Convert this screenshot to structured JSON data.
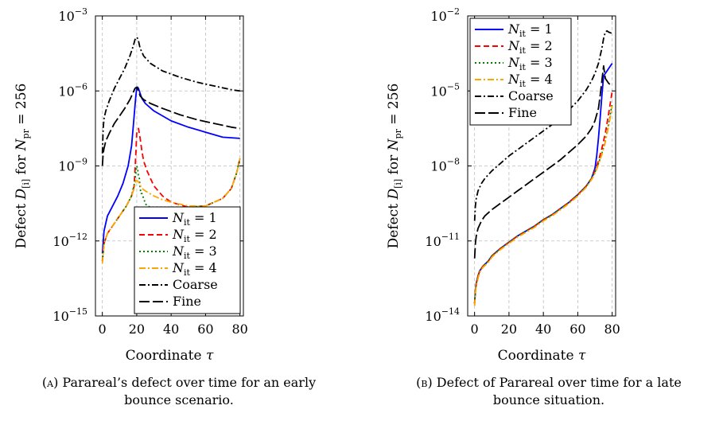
{
  "captions": {
    "a": {
      "label": "(a)",
      "text": "Parareal’s defect over time for an early bounce scenario."
    },
    "b": {
      "label": "(b)",
      "text": "Defect of Parareal over time for a late bounce situation."
    }
  },
  "chart_data": [
    {
      "type": "line",
      "xlabel": "Coordinate τ",
      "ylabel": "Defect D[i] for Npr = 256",
      "y_scale": "log",
      "xlim": [
        -4,
        82
      ],
      "ylim": [
        -15,
        -3
      ],
      "x_ticks": [
        0,
        20,
        40,
        60,
        80
      ],
      "y_ticks": [
        -15,
        -12,
        -9,
        -6,
        -3
      ],
      "grid": true,
      "legend_position": "lower-right",
      "series": [
        {
          "name": "N_it = 1",
          "color": "#0000ff",
          "dash": "solid",
          "x": [
            0,
            1,
            3,
            6,
            9,
            12,
            15,
            17,
            18,
            19,
            19.5,
            20,
            20.5,
            21,
            22,
            23,
            25,
            30,
            40,
            50,
            60,
            70,
            80
          ],
          "log10_y": [
            -12.5,
            -11.6,
            -11,
            -10.6,
            -10.2,
            -9.7,
            -9,
            -8.2,
            -7.4,
            -6.6,
            -6.2,
            -5.9,
            -5.85,
            -5.9,
            -6.1,
            -6.3,
            -6.5,
            -6.8,
            -7.2,
            -7.45,
            -7.65,
            -7.85,
            -7.9
          ]
        },
        {
          "name": "N_it = 2",
          "color": "#ff0000",
          "dash": "dashed",
          "x": [
            0,
            1,
            3,
            6,
            10,
            14,
            17,
            18.5,
            19.5,
            20,
            20.5,
            21,
            22,
            23,
            24,
            26,
            28,
            30,
            35,
            40,
            50,
            60,
            70,
            75,
            78,
            80
          ],
          "log10_y": [
            -12.8,
            -12.1,
            -11.7,
            -11.4,
            -11,
            -10.6,
            -10.2,
            -9.8,
            -8.5,
            -7.7,
            -7.6,
            -7.5,
            -7.9,
            -8.4,
            -8.8,
            -9.2,
            -9.5,
            -9.8,
            -10.2,
            -10.45,
            -10.65,
            -10.6,
            -10.3,
            -9.9,
            -9.3,
            -8.7
          ]
        },
        {
          "name": "N_it = 3",
          "color": "#008000",
          "dash": "dotted",
          "x": [
            0,
            1,
            3,
            6,
            10,
            14,
            17,
            18,
            19,
            19.5,
            20,
            20.5,
            21,
            21.5,
            22,
            22.5,
            23,
            23.5,
            24,
            25,
            26,
            28,
            30,
            40,
            50,
            60,
            70,
            75,
            78,
            80
          ],
          "log10_y": [
            -12.8,
            -12.1,
            -11.7,
            -11.4,
            -11,
            -10.6,
            -10.2,
            -9.9,
            -9.6,
            -9.2,
            -9,
            -9.1,
            -9.4,
            -9.5,
            -9.9,
            -10.1,
            -10.1,
            -10.2,
            -10.3,
            -10.5,
            -10.6,
            -10.65,
            -10.65,
            -10.65,
            -10.65,
            -10.6,
            -10.3,
            -9.9,
            -9.3,
            -8.7
          ]
        },
        {
          "name": "N_it = 4",
          "color": "#ffa500",
          "dash": "dashdot",
          "x": [
            0,
            1,
            3,
            6,
            10,
            14,
            17,
            18.5,
            19.5,
            20.5,
            21.5,
            23,
            25,
            30,
            35,
            40,
            50,
            60,
            70,
            75,
            78,
            80
          ],
          "log10_y": [
            -12.9,
            -12.1,
            -11.7,
            -11.4,
            -11,
            -10.6,
            -10.2,
            -9.9,
            -9.6,
            -9.6,
            -9.7,
            -9.9,
            -10,
            -10.2,
            -10.35,
            -10.45,
            -10.6,
            -10.6,
            -10.3,
            -9.9,
            -9.3,
            -8.7
          ]
        },
        {
          "name": "Coarse",
          "color": "#000000",
          "dash": "dashdot",
          "x": [
            0,
            0.5,
            1,
            2,
            4,
            7,
            10,
            13,
            16,
            18,
            19,
            20,
            20.5,
            21,
            22,
            24,
            28,
            35,
            45,
            55,
            65,
            75,
            80
          ],
          "log10_y": [
            -8.5,
            -7.5,
            -7.1,
            -6.8,
            -6.4,
            -5.9,
            -5.5,
            -5.1,
            -4.6,
            -4.2,
            -3.95,
            -3.85,
            -3.9,
            -4,
            -4.3,
            -4.6,
            -4.9,
            -5.2,
            -5.45,
            -5.65,
            -5.8,
            -5.95,
            -6
          ]
        },
        {
          "name": "Fine",
          "color": "#000000",
          "dash": "longdash",
          "x": [
            0,
            0.5,
            1,
            2,
            4,
            7,
            10,
            13,
            16,
            18,
            19,
            20,
            20.5,
            21,
            22,
            24,
            28,
            35,
            45,
            55,
            65,
            75,
            80
          ],
          "log10_y": [
            -9,
            -8.5,
            -8.3,
            -8,
            -7.7,
            -7.3,
            -7,
            -6.7,
            -6.35,
            -6.05,
            -5.9,
            -5.85,
            -5.9,
            -6,
            -6.2,
            -6.35,
            -6.5,
            -6.7,
            -6.95,
            -7.15,
            -7.3,
            -7.45,
            -7.5
          ]
        }
      ]
    },
    {
      "type": "line",
      "xlabel": "Coordinate τ",
      "ylabel": "Defect D[i] for Npr = 256",
      "y_scale": "log",
      "xlim": [
        -4,
        82
      ],
      "ylim": [
        -14,
        -2
      ],
      "x_ticks": [
        0,
        20,
        40,
        60,
        80
      ],
      "y_ticks": [
        -14,
        -11,
        -8,
        -5,
        -2
      ],
      "grid": true,
      "legend_position": "top-left",
      "series": [
        {
          "name": "N_it = 1",
          "color": "#0000ff",
          "dash": "solid",
          "x": [
            0,
            0.5,
            1,
            2,
            3,
            5,
            8,
            10,
            15,
            20,
            25,
            30,
            35,
            40,
            45,
            50,
            55,
            60,
            65,
            68,
            70,
            71,
            72,
            73,
            74,
            75,
            77,
            79,
            80
          ],
          "log10_y": [
            -13.5,
            -13,
            -12.7,
            -12.4,
            -12.2,
            -12,
            -11.8,
            -11.6,
            -11.3,
            -11.05,
            -10.8,
            -10.6,
            -10.4,
            -10.15,
            -9.95,
            -9.7,
            -9.45,
            -9.15,
            -8.8,
            -8.5,
            -8.1,
            -7.6,
            -6.9,
            -6.1,
            -5.2,
            -4.4,
            -4.2,
            -4,
            -3.9
          ]
        },
        {
          "name": "N_it = 2",
          "color": "#ff0000",
          "dash": "dashed",
          "x": [
            0,
            0.5,
            1,
            2,
            3,
            5,
            8,
            10,
            15,
            20,
            25,
            30,
            35,
            40,
            45,
            50,
            55,
            60,
            65,
            68,
            70,
            72,
            74,
            76,
            78,
            80
          ],
          "log10_y": [
            -13.5,
            -13,
            -12.7,
            -12.4,
            -12.2,
            -12,
            -11.8,
            -11.6,
            -11.3,
            -11.05,
            -10.8,
            -10.6,
            -10.4,
            -10.15,
            -9.95,
            -9.7,
            -9.45,
            -9.15,
            -8.8,
            -8.5,
            -8.2,
            -7.8,
            -7.3,
            -6.7,
            -5.9,
            -5
          ]
        },
        {
          "name": "N_it = 3",
          "color": "#008000",
          "dash": "dotted",
          "x": [
            0,
            0.5,
            1,
            2,
            3,
            5,
            8,
            10,
            15,
            20,
            25,
            30,
            35,
            40,
            45,
            50,
            55,
            60,
            65,
            68,
            70,
            72,
            74,
            76,
            78,
            80
          ],
          "log10_y": [
            -13.5,
            -13,
            -12.7,
            -12.4,
            -12.2,
            -12,
            -11.8,
            -11.6,
            -11.3,
            -11.05,
            -10.8,
            -10.6,
            -10.4,
            -10.15,
            -9.95,
            -9.7,
            -9.45,
            -9.15,
            -8.8,
            -8.5,
            -8.25,
            -7.9,
            -7.5,
            -7,
            -6.3,
            -5.5
          ]
        },
        {
          "name": "N_it = 4",
          "color": "#ffa500",
          "dash": "dashdot",
          "x": [
            0,
            0.5,
            1,
            2,
            3,
            5,
            8,
            10,
            15,
            20,
            25,
            30,
            35,
            40,
            45,
            50,
            55,
            60,
            65,
            68,
            70,
            72,
            74,
            76,
            78,
            80
          ],
          "log10_y": [
            -13.6,
            -13.1,
            -12.8,
            -12.5,
            -12.25,
            -12.05,
            -11.85,
            -11.65,
            -11.35,
            -11.1,
            -10.85,
            -10.65,
            -10.45,
            -10.2,
            -10,
            -9.75,
            -9.5,
            -9.2,
            -8.85,
            -8.55,
            -8.3,
            -7.95,
            -7.55,
            -7.05,
            -6.4,
            -5.6
          ]
        },
        {
          "name": "Coarse",
          "color": "#000000",
          "dash": "dashdot",
          "x": [
            0,
            0.5,
            1,
            2,
            4,
            6,
            10,
            15,
            20,
            25,
            30,
            35,
            40,
            45,
            50,
            55,
            60,
            65,
            68,
            70,
            72,
            74,
            75,
            76,
            77,
            78,
            80
          ],
          "log10_y": [
            -10.2,
            -9.6,
            -9.3,
            -9,
            -8.7,
            -8.5,
            -8.2,
            -7.9,
            -7.6,
            -7.35,
            -7.1,
            -6.85,
            -6.6,
            -6.35,
            -6.05,
            -5.75,
            -5.4,
            -4.95,
            -4.6,
            -4.3,
            -3.9,
            -3.3,
            -2.9,
            -2.65,
            -2.6,
            -2.65,
            -2.7
          ]
        },
        {
          "name": "Fine",
          "color": "#000000",
          "dash": "longdash",
          "x": [
            0,
            0.5,
            1,
            2,
            4,
            6,
            10,
            15,
            20,
            25,
            30,
            35,
            40,
            45,
            50,
            55,
            60,
            65,
            68,
            70,
            72,
            73,
            74,
            75,
            76,
            78,
            80
          ],
          "log10_y": [
            -11.7,
            -11.1,
            -10.8,
            -10.5,
            -10.2,
            -10,
            -9.75,
            -9.5,
            -9.25,
            -9,
            -8.75,
            -8.5,
            -8.25,
            -8,
            -7.75,
            -7.45,
            -7.15,
            -6.8,
            -6.5,
            -6.2,
            -5.7,
            -5.2,
            -4.6,
            -4,
            -4.5,
            -4.7,
            -4.8
          ]
        }
      ]
    }
  ]
}
